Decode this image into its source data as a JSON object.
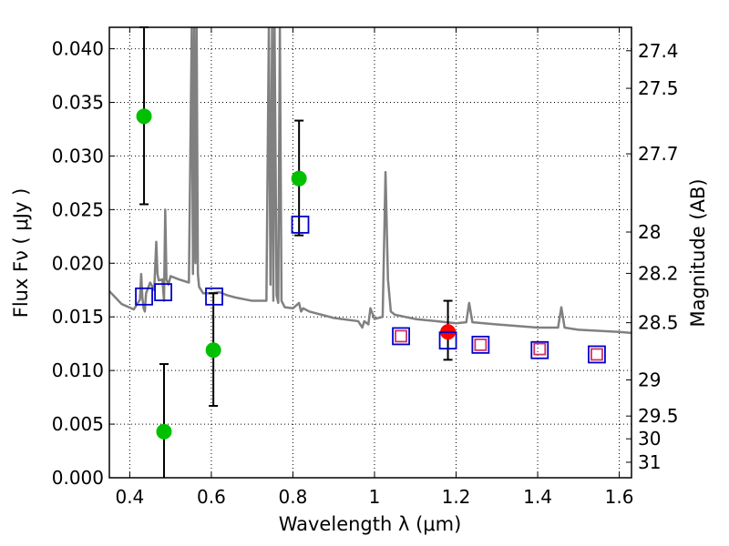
{
  "chart_data": {
    "type": "scatter",
    "xlabel": "Wavelength  λ (μm)",
    "ylabel": "Flux  Fν  ( μJy )",
    "y2label": "Magnitude (AB)",
    "xlim": [
      0.35,
      1.63
    ],
    "ylim": [
      0.0,
      0.042
    ],
    "grid": true,
    "xticks": [
      0.4,
      0.6,
      0.8,
      1.0,
      1.2,
      1.4,
      1.6
    ],
    "xtick_labels": [
      "0.4",
      "0.6",
      "0.8",
      "1",
      "1.2",
      "1.4",
      "1.6"
    ],
    "yticks": [
      0.0,
      0.005,
      0.01,
      0.015,
      0.02,
      0.025,
      0.03,
      0.035,
      0.04
    ],
    "ytick_labels": [
      "0.000",
      "0.005",
      "0.010",
      "0.015",
      "0.020",
      "0.025",
      "0.030",
      "0.035",
      "0.040"
    ],
    "mag_ticks": [
      27.4,
      27.5,
      27.7,
      28,
      28.2,
      28.5,
      29,
      29.5,
      30,
      31
    ],
    "mag_tick_labels": [
      "27.4",
      "27.5",
      "27.7",
      "28",
      "28.2",
      "28.5",
      "29",
      "29.5",
      "30",
      "31"
    ],
    "series": [
      {
        "name": "model spectrum",
        "kind": "line",
        "color": "#808080",
        "x": [
          0.35,
          0.38,
          0.41,
          0.425,
          0.428,
          0.431,
          0.434,
          0.437,
          0.44,
          0.45,
          0.46,
          0.465,
          0.468,
          0.471,
          0.48,
          0.484,
          0.487,
          0.49,
          0.495,
          0.5,
          0.52,
          0.545,
          0.552,
          0.555,
          0.558,
          0.561,
          0.564,
          0.567,
          0.57,
          0.58,
          0.6,
          0.62,
          0.64,
          0.66,
          0.7,
          0.735,
          0.741,
          0.745,
          0.749,
          0.752,
          0.755,
          0.76,
          0.764,
          0.768,
          0.772,
          0.78,
          0.8,
          0.815,
          0.82,
          0.825,
          0.84,
          0.9,
          0.96,
          0.97,
          0.975,
          0.985,
          0.99,
          1.0,
          1.02,
          1.027,
          1.033,
          1.04,
          1.05,
          1.1,
          1.15,
          1.2,
          1.225,
          1.232,
          1.24,
          1.3,
          1.4,
          1.45,
          1.458,
          1.466,
          1.5,
          1.6,
          1.63
        ],
        "y": [
          0.0174,
          0.0162,
          0.0157,
          0.0166,
          0.019,
          0.0168,
          0.0158,
          0.0155,
          0.0172,
          0.0182,
          0.0175,
          0.022,
          0.019,
          0.0184,
          0.0185,
          0.0165,
          0.025,
          0.0185,
          0.018,
          0.0188,
          0.0185,
          0.0182,
          0.042,
          0.019,
          0.042,
          0.02,
          0.042,
          0.019,
          0.0178,
          0.0172,
          0.0172,
          0.0173,
          0.017,
          0.0168,
          0.0165,
          0.0165,
          0.042,
          0.018,
          0.042,
          0.0165,
          0.042,
          0.017,
          0.0163,
          0.042,
          0.0165,
          0.0159,
          0.0158,
          0.0163,
          0.0155,
          0.0158,
          0.0155,
          0.0149,
          0.0146,
          0.014,
          0.0146,
          0.0143,
          0.0158,
          0.0148,
          0.015,
          0.0285,
          0.0185,
          0.0155,
          0.0152,
          0.0148,
          0.0146,
          0.0144,
          0.0145,
          0.0163,
          0.0145,
          0.0143,
          0.014,
          0.014,
          0.0159,
          0.014,
          0.0138,
          0.0136,
          0.0135
        ]
      },
      {
        "name": "photometry (green)",
        "kind": "points",
        "marker": "circle",
        "color": "#00c000",
        "x": [
          0.435,
          0.484,
          0.605,
          0.815
        ],
        "y": [
          0.0337,
          0.0043,
          0.0119,
          0.0279
        ],
        "yerr_low": [
          0.0255,
          0.0,
          0.0067,
          0.0226
        ],
        "yerr_high": [
          0.042,
          0.0106,
          0.0172,
          0.0333
        ]
      },
      {
        "name": "photometry (red)",
        "kind": "points",
        "marker": "circle",
        "color": "#ff0000",
        "x": [
          1.18
        ],
        "y": [
          0.0136
        ],
        "yerr_low": [
          0.011
        ],
        "yerr_high": [
          0.0165
        ]
      },
      {
        "name": "model photometry (blue squares)",
        "kind": "points",
        "marker": "square",
        "color": "#0000cc",
        "x": [
          0.435,
          0.482,
          0.607,
          0.818,
          1.065,
          1.18,
          1.26,
          1.405,
          1.545
        ],
        "y": [
          0.0169,
          0.0173,
          0.0169,
          0.0236,
          0.0132,
          0.0128,
          0.0124,
          0.0119,
          0.0115
        ]
      },
      {
        "name": "model photometry (pink squares)",
        "kind": "points",
        "marker": "square",
        "color": "#cc3366",
        "x": [
          1.065,
          1.26,
          1.405,
          1.545
        ],
        "y": [
          0.0132,
          0.0124,
          0.012,
          0.0115
        ]
      }
    ]
  }
}
